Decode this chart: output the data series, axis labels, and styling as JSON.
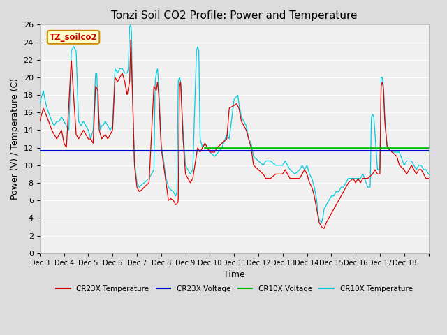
{
  "title": "Tonzi Soil CO2 Profile: Power and Temperature",
  "xlabel": "Time",
  "ylabel": "Power (V) / Temperature (C)",
  "ylim": [
    0,
    26
  ],
  "yticks": [
    0,
    2,
    4,
    6,
    8,
    10,
    12,
    14,
    16,
    18,
    20,
    22,
    24,
    26
  ],
  "cr23x_voltage_value": 11.65,
  "cr10x_voltage_value": 11.95,
  "background_color": "#dcdcdc",
  "plot_bg_color": "#f0f0f0",
  "grid_color": "#ffffff",
  "cr23x_temp_color": "#dd0000",
  "cr23x_volt_color": "#0000cc",
  "cr10x_volt_color": "#00bb00",
  "cr10x_temp_color": "#00ccdd",
  "annotation_text": "TZ_soilco2",
  "annotation_bg": "#ffffcc",
  "annotation_border": "#cc8800",
  "legend_labels": [
    "CR23X Temperature",
    "CR23X Voltage",
    "CR10X Voltage",
    "CR10X Temperature"
  ],
  "x_tick_labels": [
    "Dec 3",
    "Dec 4",
    "Dec 5",
    "Dec 6",
    "Dec 7",
    "Dec 8",
    "Dec 9",
    "Dec 10",
    "Dec 11",
    "Dec 12",
    "Dec 13",
    "Dec 14",
    "Dec 15",
    "Dec 16",
    "Dec 17",
    "Dec 18"
  ],
  "num_days": 16
}
